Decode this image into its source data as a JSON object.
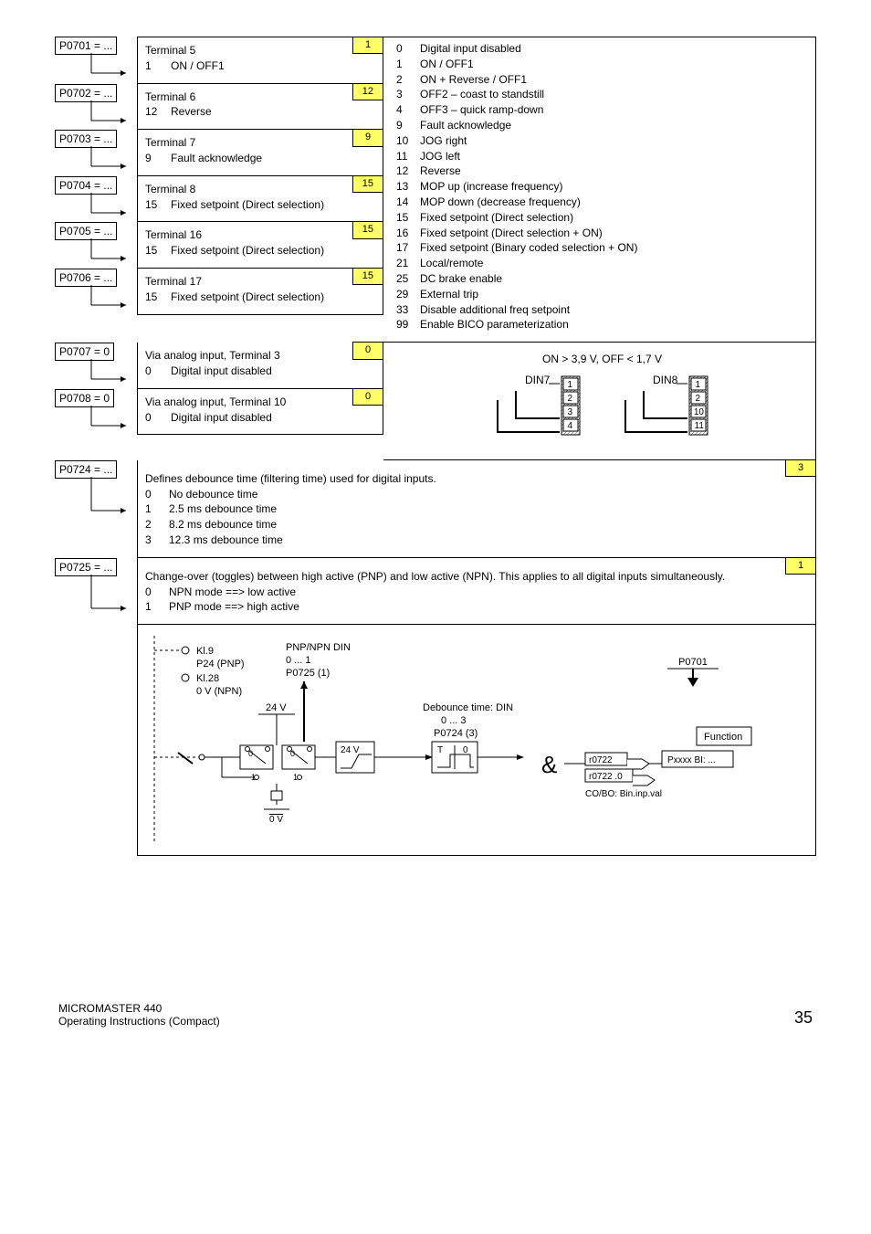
{
  "colors": {
    "highlight": "#ffff66",
    "line": "#000000",
    "hatch": "#888888"
  },
  "params": {
    "p0701": {
      "id": "P0701 = ...",
      "default": "1",
      "title": "Terminal 5",
      "optnum": "1",
      "opttext": "ON / OFF1"
    },
    "p0702": {
      "id": "P0702 = ...",
      "default": "12",
      "title": "Terminal 6",
      "optnum": "12",
      "opttext": "Reverse"
    },
    "p0703": {
      "id": "P0703 = ...",
      "default": "9",
      "title": "Terminal 7",
      "optnum": "9",
      "opttext": "Fault acknowledge"
    },
    "p0704": {
      "id": "P0704 = ...",
      "default": "15",
      "title": "Terminal 8",
      "optnum": "15",
      "opttext": "Fixed setpoint (Direct selection)"
    },
    "p0705": {
      "id": "P0705 = ...",
      "default": "15",
      "title": "Terminal 16",
      "optnum": "15",
      "opttext": "Fixed setpoint (Direct selection)"
    },
    "p0706": {
      "id": "P0706 = ...",
      "default": "15",
      "title": "Terminal 17",
      "optnum": "15",
      "opttext": "Fixed setpoint (Direct selection)"
    },
    "p0707": {
      "id": "P0707 = 0",
      "default": "0",
      "title": "Via analog input, Terminal 3",
      "optnum": "0",
      "opttext": "Digital input disabled"
    },
    "p0708": {
      "id": "P0708 = 0",
      "default": "0",
      "title": "Via analog input, Terminal 10",
      "optnum": "0",
      "opttext": "Digital input disabled"
    },
    "p0724": {
      "id": "P0724 = ...",
      "default": "3",
      "desc": "Defines debounce time (filtering time) used for digital inputs.",
      "opts": [
        {
          "n": "0",
          "t": "No debounce time"
        },
        {
          "n": "1",
          "t": "2.5 ms debounce time"
        },
        {
          "n": "2",
          "t": "8.2 ms debounce time"
        },
        {
          "n": "3",
          "t": "12.3 ms debounce time"
        }
      ]
    },
    "p0725": {
      "id": "P0725 = ...",
      "default": "1",
      "desc": "Change-over (toggles) between high active (PNP) and low active (NPN). This applies to all digital inputs simultaneously.",
      "opts": [
        {
          "n": "0",
          "t": "NPN mode ==> low active"
        },
        {
          "n": "1",
          "t": "PNP mode ==> high active"
        }
      ]
    }
  },
  "optionsList": [
    {
      "n": "0",
      "t": "Digital input disabled"
    },
    {
      "n": "1",
      "t": "ON / OFF1"
    },
    {
      "n": "2",
      "t": "ON + Reverse / OFF1"
    },
    {
      "n": "3",
      "t": "OFF2 – coast to standstill"
    },
    {
      "n": "4",
      "t": "OFF3 – quick ramp-down"
    },
    {
      "n": "9",
      "t": "Fault acknowledge"
    },
    {
      "n": "10",
      "t": "JOG right"
    },
    {
      "n": "11",
      "t": "JOG left"
    },
    {
      "n": "12",
      "t": "Reverse"
    },
    {
      "n": "13",
      "t": "MOP up (increase frequency)"
    },
    {
      "n": "14",
      "t": "MOP down (decrease frequency)"
    },
    {
      "n": "15",
      "t": "Fixed setpoint (Direct selection)"
    },
    {
      "n": "16",
      "t": "Fixed setpoint (Direct selection + ON)"
    },
    {
      "n": "17",
      "t": "Fixed setpoint (Binary coded selection + ON)"
    },
    {
      "n": "21",
      "t": "Local/remote"
    },
    {
      "n": "25",
      "t": "DC brake enable"
    },
    {
      "n": "29",
      "t": "External trip"
    },
    {
      "n": "33",
      "t": "Disable additional freq setpoint"
    },
    {
      "n": "99",
      "t": "Enable BICO parameterization"
    }
  ],
  "dinGraphic": {
    "threshold": "ON > 3,9 V, OFF < 1,7 V",
    "din7": {
      "label": "DIN7",
      "vals": [
        "1",
        "2",
        "3",
        "4"
      ]
    },
    "din8": {
      "label": "DIN8",
      "vals": [
        "1",
        "2",
        "10",
        "11"
      ]
    }
  },
  "diagram": {
    "kl9": "Kl.9",
    "p24": "P24 (PNP)",
    "kl28": "Kl.28",
    "nv": "0 V (NPN)",
    "pnp": "PNP/NPN DIN",
    "r01": "0 ... 1",
    "p0725": "P0725 (1)",
    "v24": "24 V",
    "v24b": "24 V",
    "zero": "0",
    "one": "1",
    "zerov": "0 V",
    "t": "T",
    "t0": "0",
    "and": "&",
    "deb1": "Debounce time: DIN",
    "deb2": "0 ... 3",
    "deb3": "P0724 (3)",
    "r0722a": "r0722",
    "r0722b": "r0722 .0",
    "cobo": "CO/BO: Bin.inp.val",
    "pxxxx": "Pxxxx  BI: ...",
    "func": "Function",
    "p0701": "P0701"
  },
  "footer": {
    "left1": "MICROMASTER 440",
    "left2": "Operating Instructions (Compact)",
    "pagenum": "35"
  }
}
